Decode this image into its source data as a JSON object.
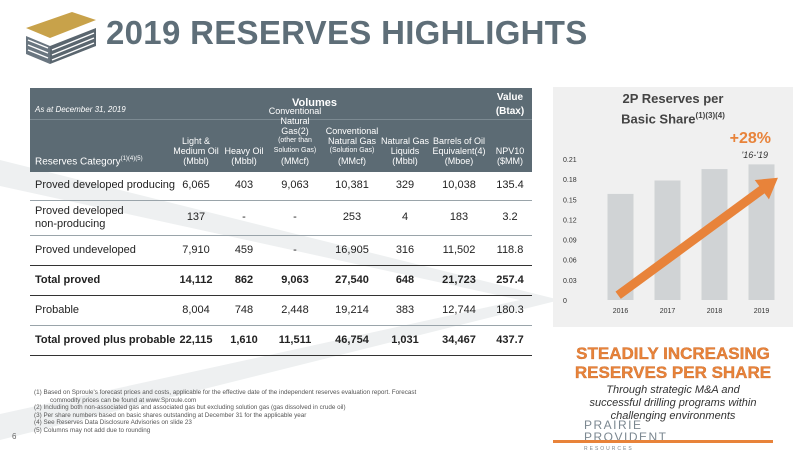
{
  "slide": {
    "title": "2019 RESERVES HIGHLIGHTS",
    "page_number": "6",
    "brand_line1": "PRAIRIE",
    "brand_line2": "PROVIDENT",
    "brand_line3": "RESOURCES"
  },
  "table": {
    "as_at": "As at December 31, 2019",
    "volumes_label": "Volumes",
    "value_label_1": "Value",
    "value_label_2": "(Btax)",
    "category_label": "Reserves Category",
    "category_sup": "(1)(4)(5)",
    "columns": [
      {
        "lines": [
          "Light &",
          "Medium Oil",
          "(Mbbl)"
        ]
      },
      {
        "lines": [
          "Heavy Oil",
          "(Mbbl)"
        ]
      },
      {
        "lines": [
          "Conventional",
          "Natural Gas(2)"
        ],
        "small": [
          "(other than",
          "Solution Gas)"
        ],
        "unit": "(MMcf)"
      },
      {
        "lines": [
          "Conventional",
          "Natural Gas"
        ],
        "small": [
          "(Solution Gas)"
        ],
        "unit": "(MMcf)"
      },
      {
        "lines": [
          "Natural Gas",
          "Liquids",
          "(Mbbl)"
        ]
      },
      {
        "lines": [
          "Barrels of Oil",
          "Equivalent(4)",
          "(Mboe)"
        ]
      },
      {
        "lines": [
          "NPV10",
          "($MM)"
        ]
      }
    ],
    "rows": [
      {
        "label": "Proved developed producing",
        "values": [
          "6,065",
          "403",
          "9,063",
          "10,381",
          "329",
          "10,038",
          "135.4"
        ],
        "bold": false
      },
      {
        "label": "Proved developed\nnon-producing",
        "values": [
          "137",
          "-",
          "-",
          "253",
          "4",
          "183",
          "3.2"
        ],
        "bold": false
      },
      {
        "label": "Proved undeveloped",
        "values": [
          "7,910",
          "459",
          "-",
          "16,905",
          "316",
          "11,502",
          "118.8"
        ],
        "bold": false
      },
      {
        "label": "Total proved",
        "values": [
          "14,112",
          "862",
          "9,063",
          "27,540",
          "648",
          "21,723",
          "257.4"
        ],
        "bold": true
      },
      {
        "label": "Probable",
        "values": [
          "8,004",
          "748",
          "2,448",
          "19,214",
          "383",
          "12,744",
          "180.3"
        ],
        "bold": false
      },
      {
        "label": "Total proved plus probable",
        "values": [
          "22,115",
          "1,610",
          "11,511",
          "46,754",
          "1,031",
          "34,467",
          "437.7"
        ],
        "bold": true
      }
    ]
  },
  "chart_title_1": "2P Reserves per",
  "chart_title_2": "Basic Share",
  "chart_title_sup": "(1)(3)(4)",
  "chart_callout": "+28%",
  "chart_callout_span": "'16-'19",
  "chart_data": {
    "type": "bar",
    "categories": [
      "2016",
      "2017",
      "2018",
      "2019"
    ],
    "values": [
      0.158,
      0.178,
      0.195,
      0.202
    ],
    "ylim": [
      0,
      0.21
    ],
    "yticks": [
      "0",
      "0.03",
      "0.06",
      "0.09",
      "0.12",
      "0.15",
      "0.18",
      "0.21"
    ],
    "bar_color": "#d0d3d5",
    "arrow_color": "#e8833a"
  },
  "callout": {
    "line1": "STEADILY INCREASING",
    "line2": "RESERVES PER SHARE",
    "sub1": "Through strategic M&A and",
    "sub2": "successful drilling programs within",
    "sub3": "challenging environments"
  },
  "footnotes": [
    "(1)   Based on Sproule's forecast prices and costs, applicable for the effective date of the independent reserves evaluation report. Forecast commodity prices can be found at www.Sproule.com",
    "(2)   Including both non-associated gas and associated gas but excluding solution gas (gas dissolved in crude oil)",
    "(3)   Per share numbers based on basic shares outstanding at December 31 for the applicable year",
    "(4)   See Reserves Data Disclosure Advisories on slide 23",
    "(5)   Columns may not add due to rounding"
  ]
}
